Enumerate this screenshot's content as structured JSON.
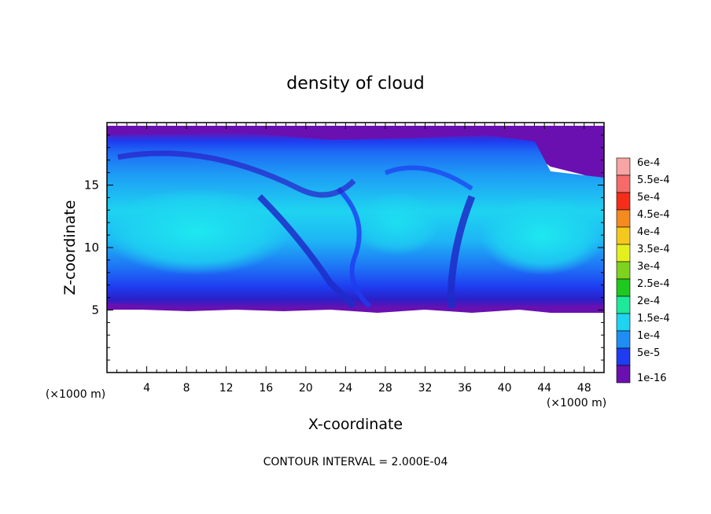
{
  "chart_data": {
    "type": "heatmap",
    "title": "density of cloud",
    "xlabel": "X-coordinate",
    "ylabel": "Z-coordinate",
    "xunit": "(×1000 m)",
    "yunit": "(×1000 m)",
    "xlim": [
      0,
      50
    ],
    "ylim": [
      0,
      20
    ],
    "xticks": [
      4,
      8,
      12,
      16,
      20,
      24,
      28,
      32,
      36,
      40,
      44,
      48
    ],
    "yticks": [
      5,
      10,
      15
    ],
    "footer": "CONTOUR INTERVAL = 2.000E-04",
    "legend": {
      "placement": "right",
      "levels": [
        {
          "label": "6e-4",
          "color": "#f7a4a4"
        },
        {
          "label": "5.5e-4",
          "color": "#f76a6a"
        },
        {
          "label": "5e-4",
          "color": "#f52d1a"
        },
        {
          "label": "4.5e-4",
          "color": "#f58a1e"
        },
        {
          "label": "4e-4",
          "color": "#f5c81e"
        },
        {
          "label": "3.5e-4",
          "color": "#e4f01e"
        },
        {
          "label": "3e-4",
          "color": "#7fd21e"
        },
        {
          "label": "2.5e-4",
          "color": "#1ec81e"
        },
        {
          "label": "2e-4",
          "color": "#1ee89a"
        },
        {
          "label": "1.5e-4",
          "color": "#1ed4f0"
        },
        {
          "label": "1e-4",
          "color": "#1e8ef5"
        },
        {
          "label": "5e-5",
          "color": "#1e3cf0"
        },
        {
          "label": "1e-16",
          "color": "#6a10b0"
        }
      ]
    },
    "cloud_layer": {
      "z_bottom": 5,
      "z_top": 19.5,
      "core_value": "2e-4",
      "edge_value": "1e-16"
    }
  }
}
